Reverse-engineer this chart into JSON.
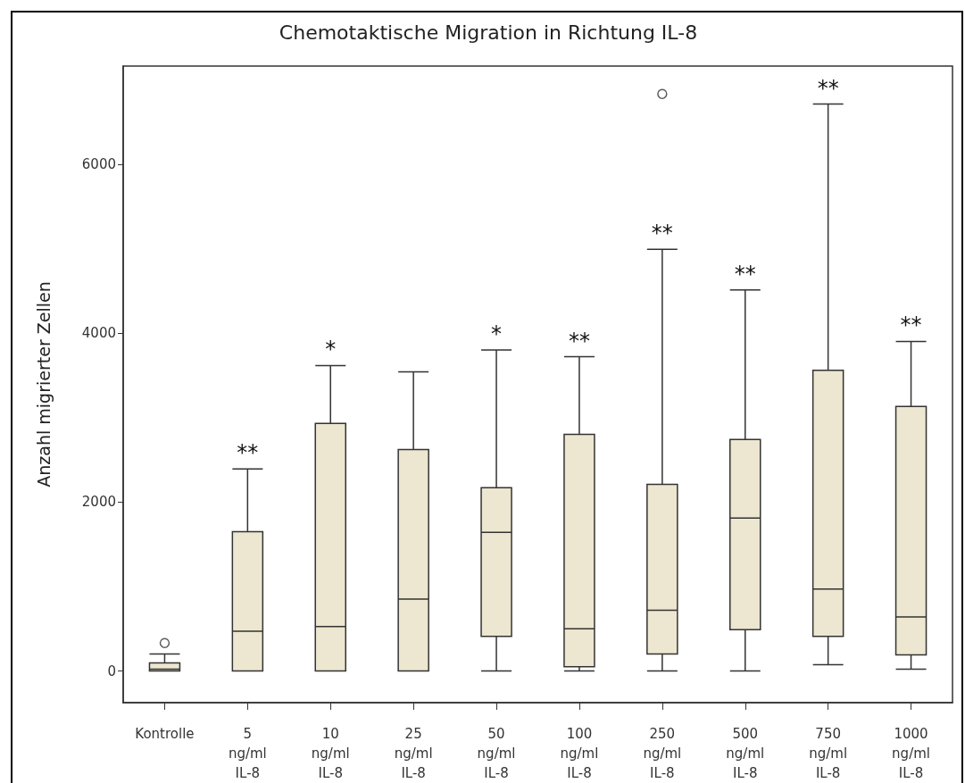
{
  "chart_data": {
    "type": "box",
    "title": "Chemotaktische Migration in Richtung IL-8",
    "ylabel": "Anzahl migrierter Zellen",
    "categories": [
      "Kontrolle",
      "5 ng/ml IL-8",
      "10 ng/ml IL-8",
      "25 ng/ml IL-8",
      "50 ng/ml IL-8",
      "100 ng/ml IL-8",
      "250 ng/ml IL-8",
      "500 ng/ml IL-8",
      "750 ng/ml IL-8",
      "1000 ng/ml IL-8"
    ],
    "boxes": [
      {
        "low": 0,
        "q1": 0,
        "median": 20,
        "q3": 95,
        "high": 200,
        "outliers": [
          330
        ]
      },
      {
        "low": 0,
        "q1": 0,
        "median": 470,
        "q3": 1650,
        "high": 2390
      },
      {
        "low": 0,
        "q1": 0,
        "median": 525,
        "q3": 2930,
        "high": 3615
      },
      {
        "low": 0,
        "q1": 0,
        "median": 850,
        "q3": 2620,
        "high": 3540
      },
      {
        "low": 0,
        "q1": 410,
        "median": 1640,
        "q3": 2170,
        "high": 3800
      },
      {
        "low": 0,
        "q1": 50,
        "median": 500,
        "q3": 2800,
        "high": 3720
      },
      {
        "low": 0,
        "q1": 200,
        "median": 720,
        "q3": 2210,
        "high": 4990,
        "outliers": [
          6830
        ]
      },
      {
        "low": 0,
        "q1": 490,
        "median": 1810,
        "q3": 2740,
        "high": 4510
      },
      {
        "low": 75,
        "q1": 410,
        "median": 970,
        "q3": 3560,
        "high": 6710
      },
      {
        "low": 20,
        "q1": 190,
        "median": 640,
        "q3": 3130,
        "high": 3900
      }
    ],
    "color": "#ede6d0",
    "ylim": [
      -375,
      7160
    ],
    "yticks": [
      0,
      2000,
      4000,
      6000
    ],
    "grid": false,
    "annotations": [
      {
        "text": "**",
        "x": "5 ng/ml IL-8",
        "y": 2390
      },
      {
        "text": "*",
        "x": "10 ng/ml IL-8",
        "y": 3615
      },
      {
        "text": "*",
        "x": "50 ng/ml IL-8",
        "y": 3800
      },
      {
        "text": "**",
        "x": "100 ng/ml IL-8",
        "y": 3720
      },
      {
        "text": "**",
        "x": "250 ng/ml IL-8",
        "y": 4990
      },
      {
        "text": "**",
        "x": "500 ng/ml IL-8",
        "y": 4510
      },
      {
        "text": "**",
        "x": "750 ng/ml IL-8",
        "y": 6710
      },
      {
        "text": "**",
        "x": "1000 ng/ml IL-8",
        "y": 3900
      }
    ]
  }
}
